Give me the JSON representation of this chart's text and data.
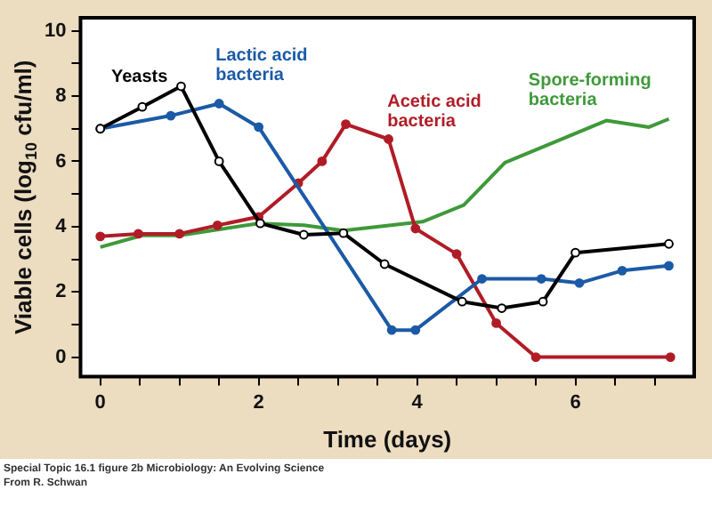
{
  "chart_data": {
    "type": "line",
    "xlabel": "Time (days)",
    "ylabel": "Viable cells (log$_{10}$ cfu/ml)",
    "xlim": [
      -0.25,
      7.5
    ],
    "ylim": [
      -0.6,
      10.4
    ],
    "xticks": [
      0,
      {
        "value": 0.5,
        "label": null
      },
      2,
      {
        "value": 1,
        "label": null
      },
      {
        "value": 1.5,
        "label": null
      },
      {
        "value": 2.5,
        "label": null
      },
      {
        "value": 3,
        "label": null
      },
      {
        "value": 3.5,
        "label": null
      },
      4,
      {
        "value": 4.5,
        "label": null
      },
      {
        "value": 5,
        "label": null
      },
      {
        "value": 5.5,
        "label": null
      },
      6,
      {
        "value": 6.5,
        "label": null
      },
      {
        "value": 7,
        "label": null
      }
    ],
    "yticks": [
      0,
      {
        "value": 1,
        "label": null
      },
      2,
      {
        "value": 3,
        "label": null
      },
      4,
      {
        "value": 5,
        "label": null
      },
      6,
      {
        "value": 7,
        "label": null
      },
      8,
      {
        "value": 9,
        "label": null
      },
      10
    ],
    "grid": false,
    "legend": false,
    "line_style": "solid",
    "series": [
      {
        "name": "Yeasts",
        "color": "#000000",
        "marker": "circle",
        "x": [
          0,
          0.53,
          1.02,
          1.5,
          2.02,
          2.57,
          3.07,
          3.59,
          4.57,
          5.07,
          5.59,
          6.0,
          7.18
        ],
        "values": [
          7.0,
          7.67,
          8.3,
          6.0,
          4.1,
          3.75,
          3.8,
          2.85,
          1.7,
          1.5,
          1.7,
          3.2,
          3.47
        ]
      },
      {
        "name": "Lactic acid bacteria",
        "color": "#1b5aa6",
        "marker": "circle",
        "x": [
          0,
          0.89,
          1.5,
          2.0,
          3.68,
          3.98,
          4.82,
          5.57,
          6.05,
          6.59,
          7.18
        ],
        "values": [
          7.0,
          7.4,
          7.77,
          7.05,
          0.83,
          0.83,
          2.4,
          2.4,
          2.27,
          2.65,
          2.8
        ]
      },
      {
        "name": "Acetic acid bacteria",
        "color": "#b01c26",
        "marker": "circle",
        "x": [
          0,
          0.48,
          1.0,
          1.48,
          2.0,
          2.5,
          2.8,
          3.1,
          3.64,
          3.98,
          4.5,
          5.0,
          5.5,
          7.2
        ],
        "values": [
          3.7,
          3.78,
          3.78,
          4.04,
          4.3,
          5.33,
          6.0,
          7.14,
          6.68,
          3.94,
          3.16,
          1.04,
          0,
          0
        ]
      },
      {
        "name": "Spore-forming bacteria",
        "color": "#3f993a",
        "marker": "none",
        "x": [
          0,
          0.53,
          1.0,
          2.0,
          2.57,
          3.07,
          4.07,
          4.59,
          5.11,
          6.39,
          6.93,
          7.18
        ],
        "values": [
          3.37,
          3.73,
          3.73,
          4.1,
          4.04,
          3.88,
          4.15,
          4.66,
          5.96,
          7.25,
          7.05,
          7.3
        ]
      }
    ],
    "annotations": [
      "Special Topic 16.1 figure 2b  Microbiology: An Evolving Science",
      "From R. Schwan"
    ]
  }
}
